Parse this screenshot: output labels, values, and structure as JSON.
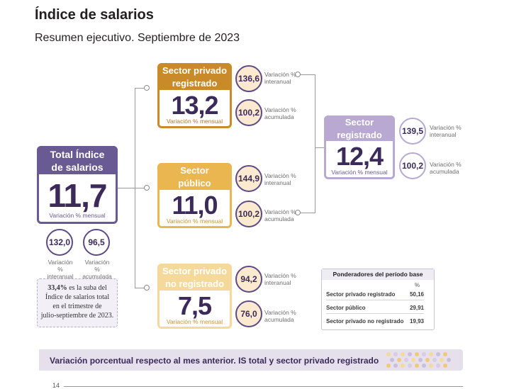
{
  "header": {
    "title": "Índice de salarios",
    "subtitle": "Resumen ejecutivo. Septiembre de 2023"
  },
  "total": {
    "title_line1": "Total Índice",
    "title_line2": "de salarios",
    "value": "11,7",
    "note": "Variación % mensual",
    "interanual_value": "132,0",
    "interanual_label_1": "Variación %",
    "interanual_label_2": "interanual",
    "acumulada_value": "96,5",
    "acumulada_label_1": "Variación %",
    "acumulada_label_2": "acumulada",
    "note_box": {
      "line1_bold": "33,4%",
      "line1_rest": " es la suba del",
      "line2": "Índice de salarios total",
      "line3": "en el trimestre de",
      "line4": "julio-septiembre de 2023."
    }
  },
  "privado": {
    "title_line1": "Sector privado",
    "title_line2": "registrado",
    "value": "13,2",
    "note": "Variación % mensual",
    "interanual_value": "136,6",
    "interanual_label_1": "Variación %",
    "interanual_label_2": "interanual",
    "acumulada_value": "100,2",
    "acumulada_label_1": "Variación %",
    "acumulada_label_2": "acumulada"
  },
  "publico": {
    "title_line1": "Sector",
    "title_line2": "público",
    "value": "11,0",
    "note": "Variación % mensual",
    "interanual_value": "144,9",
    "interanual_label_1": "Variación %",
    "interanual_label_2": "interanual",
    "acumulada_value": "100,2",
    "acumulada_label_1": "Variación %",
    "acumulada_label_2": "acumulada"
  },
  "noregistrado": {
    "title_line1": "Sector privado",
    "title_line2": "no registrado",
    "value": "7,5",
    "note": "Variación % mensual",
    "interanual_value": "94,2",
    "interanual_label_1": "Variación %",
    "interanual_label_2": "interanual",
    "acumulada_value": "76,0",
    "acumulada_label_1": "Variación %",
    "acumulada_label_2": "acumulada"
  },
  "registrado": {
    "title_line1": "Sector",
    "title_line2": "registrado",
    "value": "12,4",
    "note": "Variación % mensual",
    "interanual_value": "139,5",
    "interanual_label_1": "Variación %",
    "interanual_label_2": "interanual",
    "acumulada_value": "100,2",
    "acumulada_label_1": "Variación %",
    "acumulada_label_2": "acumulada"
  },
  "weights": {
    "title": "Ponderadores del período base",
    "unit": "%",
    "rows": [
      {
        "label": "Sector privado registrado",
        "value": "50,16"
      },
      {
        "label": "Sector público",
        "value": "29,91"
      },
      {
        "label": "Sector privado no registrado",
        "value": "19,93"
      }
    ]
  },
  "banner": {
    "text": "Variación porcentual respecto al mes anterior. IS total y sector privado registrado"
  },
  "footer": {
    "page_number": "14"
  },
  "colors": {
    "purple": "#6a5a93",
    "privado": "#c98a2a",
    "publico": "#eab650",
    "noregistrado": "#f4d99a",
    "registrado": "#b8a8d2",
    "value_text": "#3b2a5a"
  }
}
